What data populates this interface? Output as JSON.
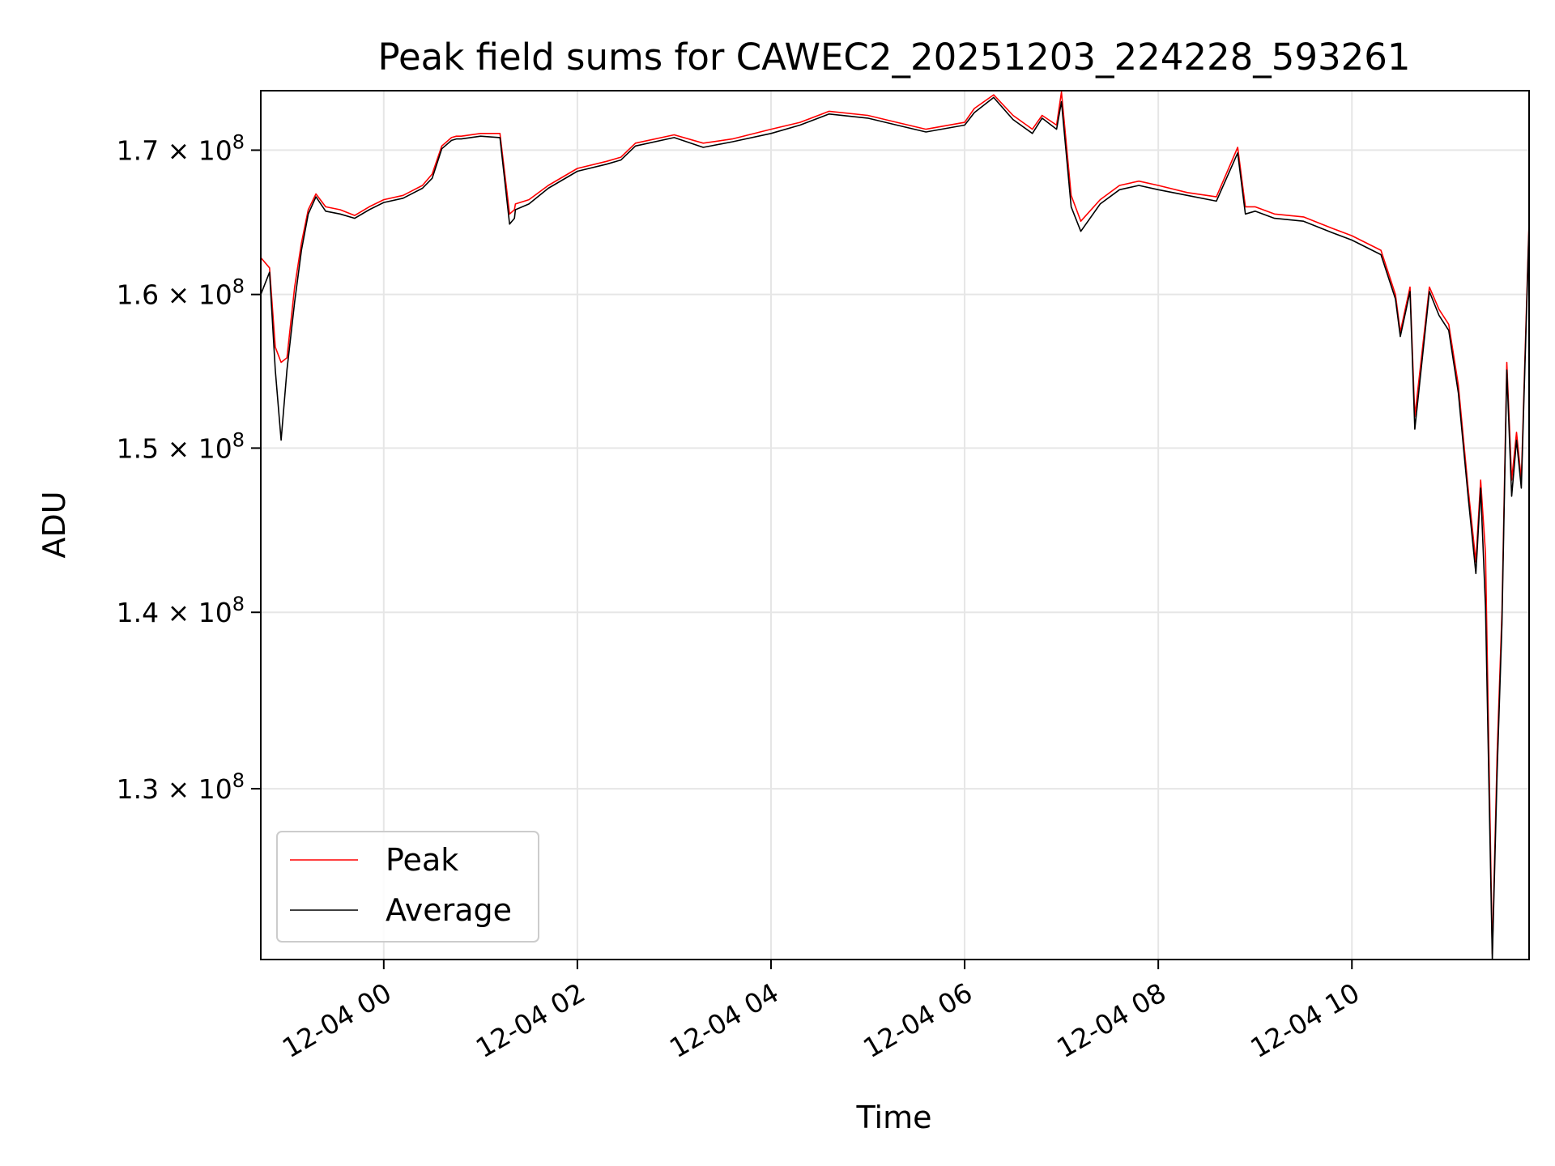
{
  "chart_data": {
    "type": "line",
    "title": "Peak field sums for CAWEC2_20251203_224228_593261",
    "xlabel": "Time",
    "ylabel": "ADU",
    "x_tick_labels": [
      "12-04 00",
      "12-04 02",
      "12-04 04",
      "12-04 06",
      "12-04 08",
      "12-04 10"
    ],
    "x_ticks_hours": [
      0,
      2,
      4,
      6,
      8,
      10
    ],
    "y_scale": "log",
    "y_tick_values": [
      130000000,
      140000000,
      150000000,
      160000000,
      170000000
    ],
    "y_tick_mantissas": [
      "1.3",
      "1.4",
      "1.5",
      "1.6",
      "1.7"
    ],
    "y_tick_exponent": "8",
    "xlim_hours": [
      -1.27,
      11.83
    ],
    "ylim": [
      121000000,
      174300000
    ],
    "grid": true,
    "legend_position": "lower left",
    "colors": {
      "peak": "#ff0000",
      "average": "#000000"
    },
    "series": [
      {
        "name": "Peak",
        "x_hours": [
          -1.27,
          -1.18,
          -1.12,
          -1.06,
          -1.0,
          -0.92,
          -0.85,
          -0.78,
          -0.7,
          -0.6,
          -0.45,
          -0.3,
          -0.15,
          0.0,
          0.2,
          0.4,
          0.5,
          0.6,
          0.7,
          0.75,
          0.8,
          1.0,
          1.2,
          1.3,
          1.35,
          1.36,
          1.5,
          1.7,
          2.0,
          2.3,
          2.45,
          2.6,
          3.0,
          3.3,
          3.6,
          4.0,
          4.3,
          4.6,
          5.0,
          5.3,
          5.6,
          6.0,
          6.1,
          6.3,
          6.5,
          6.7,
          6.8,
          6.95,
          7.0,
          7.1,
          7.2,
          7.4,
          7.6,
          7.8,
          8.0,
          8.3,
          8.6,
          8.82,
          8.9,
          9.0,
          9.2,
          9.5,
          9.8,
          10.0,
          10.3,
          10.45,
          10.5,
          10.6,
          10.65,
          10.8,
          10.9,
          11.0,
          11.1,
          11.2,
          11.28,
          11.33,
          11.38,
          11.45,
          11.5,
          11.55,
          11.6,
          11.65,
          11.7,
          11.75,
          11.8,
          11.83
        ],
        "values": [
          162500000,
          161800000,
          156500000,
          155500000,
          155800000,
          160500000,
          163500000,
          165800000,
          166900000,
          166000000,
          165800000,
          165400000,
          166000000,
          166500000,
          166800000,
          167500000,
          168300000,
          170300000,
          170900000,
          171000000,
          171000000,
          171200000,
          171200000,
          165500000,
          165800000,
          166200000,
          166500000,
          167500000,
          168700000,
          169200000,
          169500000,
          170500000,
          171100000,
          170500000,
          170800000,
          171500000,
          172000000,
          172800000,
          172500000,
          172000000,
          171500000,
          172000000,
          173000000,
          174000000,
          172500000,
          171500000,
          172500000,
          171800000,
          174200000,
          166800000,
          165000000,
          166500000,
          167500000,
          167800000,
          167500000,
          167000000,
          166700000,
          170200000,
          166000000,
          166000000,
          165500000,
          165300000,
          164500000,
          164000000,
          163000000,
          160000000,
          157500000,
          160500000,
          152000000,
          160500000,
          159000000,
          158000000,
          154000000,
          147500000,
          143000000,
          148000000,
          143500000,
          121300000,
          132000000,
          140000000,
          155500000,
          148000000,
          151000000,
          148000000,
          158500000,
          165000000
        ]
      },
      {
        "name": "Average",
        "x_hours": [
          -1.27,
          -1.18,
          -1.12,
          -1.06,
          -1.0,
          -0.92,
          -0.85,
          -0.78,
          -0.7,
          -0.6,
          -0.45,
          -0.3,
          -0.15,
          0.0,
          0.2,
          0.4,
          0.5,
          0.6,
          0.7,
          0.75,
          0.8,
          1.0,
          1.2,
          1.3,
          1.35,
          1.36,
          1.5,
          1.7,
          2.0,
          2.3,
          2.45,
          2.6,
          3.0,
          3.3,
          3.6,
          4.0,
          4.3,
          4.6,
          5.0,
          5.3,
          5.6,
          6.0,
          6.1,
          6.3,
          6.5,
          6.7,
          6.8,
          6.95,
          7.0,
          7.1,
          7.2,
          7.4,
          7.6,
          7.8,
          8.0,
          8.3,
          8.6,
          8.82,
          8.9,
          9.0,
          9.2,
          9.5,
          9.8,
          10.0,
          10.3,
          10.45,
          10.5,
          10.6,
          10.65,
          10.8,
          10.9,
          11.0,
          11.1,
          11.2,
          11.28,
          11.33,
          11.38,
          11.45,
          11.5,
          11.55,
          11.6,
          11.65,
          11.7,
          11.75,
          11.8,
          11.83
        ],
        "values": [
          160000000,
          161500000,
          155000000,
          150500000,
          155000000,
          159500000,
          163000000,
          165500000,
          166700000,
          165700000,
          165500000,
          165200000,
          165800000,
          166300000,
          166600000,
          167300000,
          168000000,
          170100000,
          170700000,
          170800000,
          170800000,
          171000000,
          170900000,
          164800000,
          165200000,
          165800000,
          166200000,
          167300000,
          168500000,
          169000000,
          169300000,
          170300000,
          170900000,
          170200000,
          170600000,
          171200000,
          171800000,
          172600000,
          172300000,
          171800000,
          171300000,
          171800000,
          172700000,
          173800000,
          172200000,
          171200000,
          172300000,
          171500000,
          173500000,
          166000000,
          164300000,
          166200000,
          167200000,
          167500000,
          167200000,
          166800000,
          166400000,
          169800000,
          165500000,
          165700000,
          165200000,
          165000000,
          164200000,
          163700000,
          162700000,
          159700000,
          157200000,
          160200000,
          151200000,
          160200000,
          158600000,
          157600000,
          153500000,
          147000000,
          142300000,
          147500000,
          140300000,
          121000000,
          131000000,
          139300000,
          155000000,
          147000000,
          150500000,
          147500000,
          158000000,
          164700000
        ]
      }
    ]
  }
}
